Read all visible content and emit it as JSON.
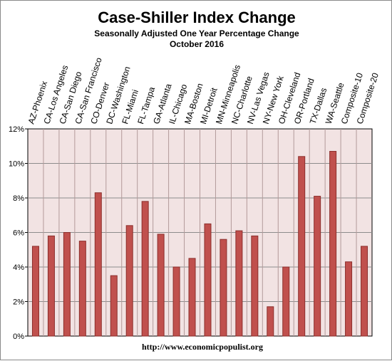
{
  "chart_data": {
    "type": "bar",
    "title": "Case-Shiller Index Change",
    "subtitle": "Seasonally Adjusted One Year Percentage Change",
    "period": "October 2016",
    "footer": "http://www.economicpopulist.org",
    "categories": [
      "AZ-Phoenix",
      "CA-Los Angeles",
      "CA-San Diego",
      "CA-San Francisco",
      "CO-Denver",
      "DC-Washington",
      "FL-Miami",
      "FL-Tampa",
      "GA-Atlanta",
      "IL-Chicago",
      "MA-Boston",
      "MI-Detroit",
      "MN-Minneapolis",
      "NC-Charlotte",
      "NV-Las Vegas",
      "NY-New York",
      "OH-Cleveland",
      "OR-Portland",
      "TX-Dallas",
      "WA-Seattle",
      "Composite-10",
      "Composite-20"
    ],
    "values": [
      5.2,
      5.8,
      6.0,
      5.5,
      8.3,
      3.5,
      6.4,
      7.8,
      5.9,
      4.0,
      4.5,
      6.5,
      5.6,
      6.1,
      5.8,
      1.7,
      4.0,
      10.4,
      8.1,
      10.7,
      4.3,
      5.2
    ],
    "ylim": [
      0,
      12
    ],
    "yticks": [
      0,
      2,
      4,
      6,
      8,
      10,
      12
    ],
    "ytick_format": "%",
    "grid": "horizontal",
    "colors": {
      "bar": "#c0504d",
      "bar_border": "#8b2e2b",
      "plot_bg": "#f2e3e3",
      "grid": "#8c8c8c"
    }
  }
}
